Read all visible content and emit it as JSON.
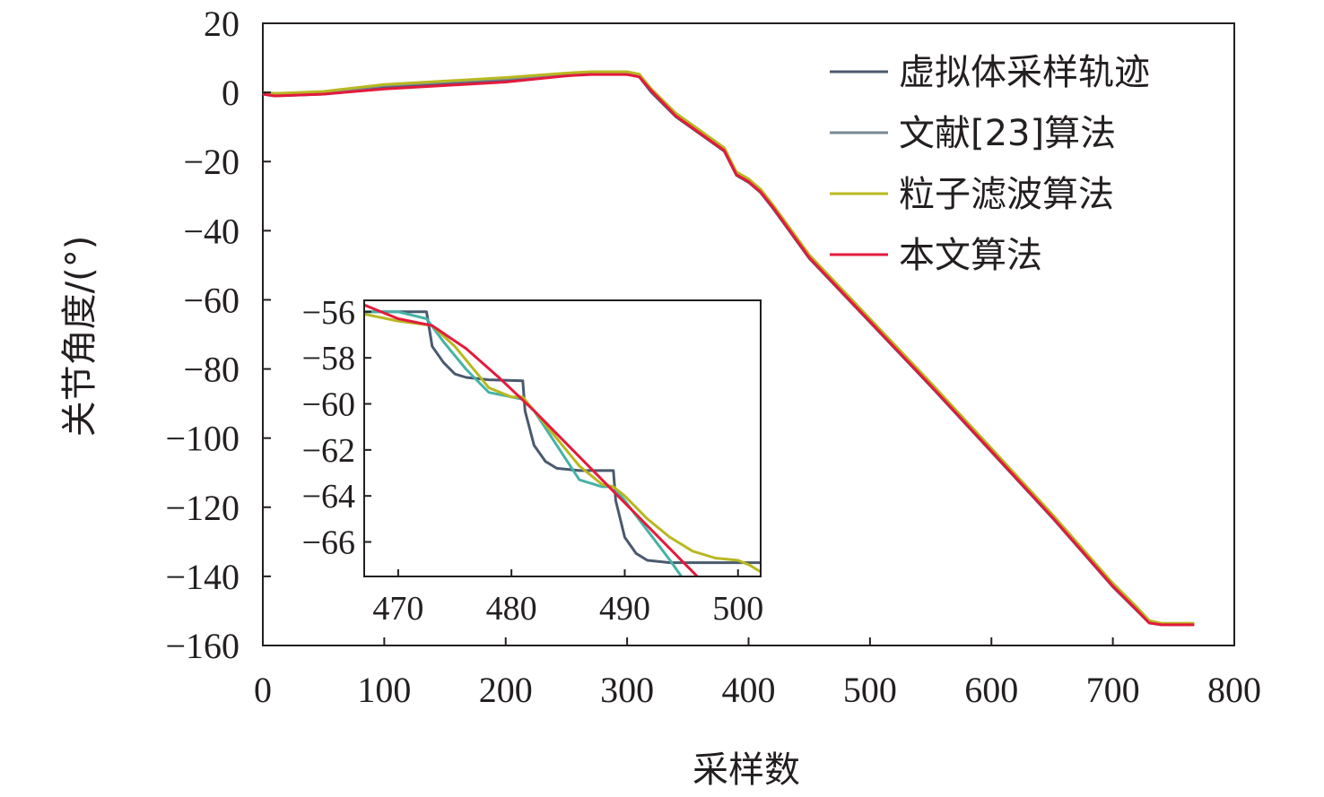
{
  "chart_data": {
    "type": "line",
    "xlabel": "采样数",
    "ylabel": "关节角度/(°)",
    "xlim": [
      0,
      800
    ],
    "ylim": [
      -160,
      20
    ],
    "xticks": [
      0,
      100,
      200,
      300,
      400,
      500,
      600,
      700,
      800
    ],
    "yticks": [
      20,
      0,
      -20,
      -40,
      -60,
      -80,
      -100,
      -120,
      -140,
      -160
    ],
    "legend_position": "top-right",
    "series": [
      {
        "name": "虚拟体采样轨迹",
        "color": "#4a5a6e",
        "x": [
          0,
          10,
          50,
          100,
          150,
          200,
          250,
          270,
          300,
          310,
          320,
          340,
          360,
          380,
          390,
          400,
          410,
          420,
          450,
          500,
          550,
          600,
          650,
          700,
          720,
          730,
          740,
          767
        ],
        "y": [
          -0.5,
          -1.0,
          -0.5,
          1.5,
          2.5,
          3.5,
          5.0,
          5.5,
          5.5,
          4.5,
          0.0,
          -7.0,
          -12.0,
          -17.0,
          -24.0,
          -26.0,
          -29.0,
          -33.5,
          -48.0,
          -66.5,
          -85.0,
          -104.0,
          -123.0,
          -143.0,
          -150.0,
          -153.5,
          -154.0,
          -154.0
        ]
      },
      {
        "name": "文献[23]算法",
        "color": "#7a8a96",
        "x": [
          0,
          10,
          50,
          100,
          150,
          200,
          250,
          270,
          300,
          310,
          320,
          340,
          360,
          380,
          390,
          400,
          410,
          420,
          450,
          500,
          550,
          600,
          650,
          700,
          720,
          730,
          740,
          767
        ],
        "y": [
          0.0,
          -0.3,
          0.0,
          2.0,
          3.0,
          4.0,
          5.3,
          5.8,
          5.8,
          5.0,
          0.5,
          -6.5,
          -11.5,
          -16.5,
          -23.5,
          -25.5,
          -28.5,
          -33.0,
          -47.5,
          -66.0,
          -84.5,
          -103.5,
          -122.5,
          -142.5,
          -149.5,
          -153.0,
          -153.8,
          -153.8
        ]
      },
      {
        "name": "粒子滤波算法",
        "color": "#b8b820",
        "x": [
          0,
          10,
          50,
          100,
          150,
          200,
          250,
          270,
          300,
          310,
          320,
          340,
          360,
          380,
          390,
          400,
          410,
          420,
          450,
          500,
          550,
          600,
          650,
          700,
          720,
          730,
          740,
          767
        ],
        "y": [
          0.0,
          -0.3,
          0.3,
          2.3,
          3.3,
          4.3,
          5.6,
          6.0,
          6.0,
          5.3,
          1.0,
          -6.0,
          -11.0,
          -16.0,
          -23.0,
          -25.0,
          -28.0,
          -32.5,
          -47.0,
          -65.5,
          -84.0,
          -103.0,
          -122.0,
          -142.0,
          -149.0,
          -152.8,
          -153.6,
          -153.6
        ]
      },
      {
        "name": "本文算法",
        "color": "#e41a3c",
        "x": [
          0,
          10,
          50,
          100,
          150,
          200,
          250,
          270,
          300,
          310,
          320,
          340,
          360,
          380,
          390,
          400,
          410,
          420,
          450,
          500,
          550,
          600,
          650,
          700,
          720,
          730,
          740,
          767
        ],
        "y": [
          -0.5,
          -1.0,
          -0.5,
          1.0,
          2.0,
          3.0,
          4.8,
          5.2,
          5.2,
          4.5,
          0.5,
          -6.8,
          -11.8,
          -16.8,
          -23.8,
          -25.8,
          -28.8,
          -33.2,
          -47.8,
          -66.3,
          -84.8,
          -103.8,
          -122.8,
          -142.8,
          -149.8,
          -153.5,
          -154.0,
          -154.0
        ]
      }
    ],
    "inset": {
      "xlim": [
        467,
        502
      ],
      "ylim": [
        -67.5,
        -55.5
      ],
      "xticks": [
        470,
        480,
        490,
        500
      ],
      "yticks": [
        -56,
        -58,
        -60,
        -62,
        -64,
        -66
      ],
      "series": [
        {
          "name": "虚拟体采样轨迹",
          "color": "#4a5a6e",
          "x": [
            467,
            470,
            472.5,
            473,
            474,
            475,
            476,
            478,
            481,
            481.2,
            482,
            483,
            484,
            486,
            489,
            489.2,
            490,
            491,
            492,
            494,
            497,
            501,
            502
          ],
          "y": [
            -56.0,
            -56.0,
            -56.0,
            -57.5,
            -58.2,
            -58.7,
            -58.85,
            -58.95,
            -59.0,
            -60.3,
            -61.8,
            -62.5,
            -62.8,
            -62.9,
            -62.9,
            -64.2,
            -65.8,
            -66.5,
            -66.8,
            -66.9,
            -66.9,
            -66.9,
            -66.9
          ]
        },
        {
          "name": "文献[23]算法",
          "color": "#45b3a6",
          "x": [
            467,
            470,
            472.5,
            474,
            476,
            478,
            480,
            481,
            482,
            484,
            486,
            488,
            489,
            490,
            492,
            494,
            495
          ],
          "y": [
            -56.0,
            -56.0,
            -56.3,
            -57.3,
            -58.5,
            -59.5,
            -59.7,
            -59.8,
            -60.3,
            -61.8,
            -63.3,
            -63.6,
            -63.6,
            -64.2,
            -65.5,
            -66.8,
            -67.5
          ]
        },
        {
          "name": "粒子滤波算法",
          "color": "#b8b820",
          "x": [
            467,
            470,
            473,
            475,
            477,
            478,
            480,
            481,
            482,
            484,
            486,
            488,
            489,
            490,
            492,
            494,
            496,
            498,
            500,
            501,
            502
          ],
          "y": [
            -56.1,
            -56.4,
            -56.6,
            -57.5,
            -58.7,
            -59.3,
            -59.7,
            -59.7,
            -60.3,
            -61.5,
            -62.7,
            -63.5,
            -63.6,
            -64.0,
            -65.0,
            -65.8,
            -66.4,
            -66.7,
            -66.8,
            -67.0,
            -67.3
          ]
        },
        {
          "name": "本文算法",
          "color": "#e41a3c",
          "x": [
            467,
            470,
            473,
            476,
            479,
            482,
            485,
            488,
            491,
            494,
            497
          ],
          "y": [
            -55.7,
            -56.3,
            -56.6,
            -57.6,
            -58.9,
            -60.3,
            -61.8,
            -63.3,
            -64.8,
            -66.3,
            -67.8
          ]
        }
      ]
    }
  }
}
